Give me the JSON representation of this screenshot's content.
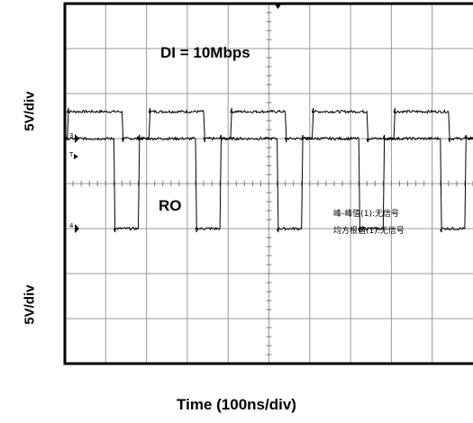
{
  "chart_data": {
    "type": "line",
    "title": "",
    "xlabel": "Time (100ns/div)",
    "ylabel_top": "5V/div",
    "ylabel_bottom": "5V/div",
    "x_units": "ns",
    "x_per_div_ns": 100,
    "xlim_ns": [
      0,
      1000
    ],
    "y_units": "div",
    "ylim_div": [
      -4,
      4
    ],
    "grid": true,
    "series": [
      {
        "name": "DI = 10Mbps",
        "channel_marker": "3",
        "baseline_div": 1.0,
        "levels_div": [
          1.0,
          1.6
        ],
        "period_ns": 200,
        "transitions_ns": [
          5,
          140,
          205,
          340,
          405,
          540,
          605,
          740,
          805,
          940
        ]
      },
      {
        "name": "RO",
        "channel_marker": "4",
        "trigger_marker": "T",
        "baseline_div": -1.0,
        "levels_div": [
          -1.0,
          1.0
        ],
        "period_ns": 200,
        "transitions_ns": [
          120,
          180,
          320,
          380,
          520,
          580,
          720,
          780,
          920,
          980
        ]
      }
    ],
    "annotations": {
      "di_label": "DI = 10Mbps",
      "ro_label": "RO",
      "meas1": "峰-峰值(1):无信号",
      "meas2": "均方根值(1):无信号"
    }
  }
}
